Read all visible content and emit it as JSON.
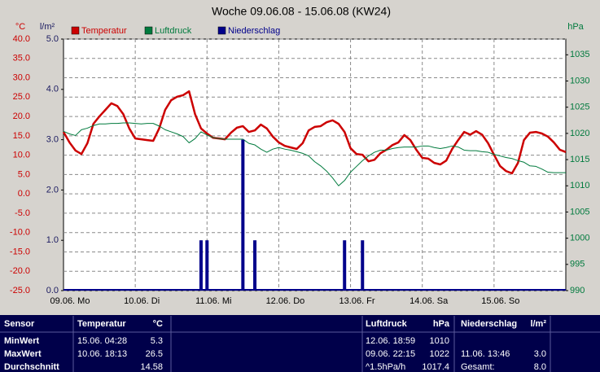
{
  "chart_data": {
    "type": "line",
    "title": "Woche 09.06.08 - 15.06.08 (KW24)",
    "y_label": "°C",
    "y2_label": "l/m²",
    "y3_label": "hPa",
    "grid": true,
    "legend": "top",
    "categories": [
      "09.06. Mo",
      null,
      null,
      null,
      null,
      null,
      null,
      null,
      null,
      null,
      null,
      null,
      "10.06. Di",
      null,
      null,
      null,
      null,
      null,
      null,
      null,
      null,
      null,
      null,
      null,
      "11.06. Mi",
      null,
      null,
      null,
      null,
      null,
      null,
      null,
      null,
      null,
      null,
      null,
      "12.06. Do",
      null,
      null,
      null,
      null,
      null,
      null,
      null,
      null,
      null,
      null,
      null,
      "13.06. Fr",
      null,
      null,
      null,
      null,
      null,
      null,
      null,
      null,
      null,
      null,
      null,
      "14.06. Sa",
      null,
      null,
      null,
      null,
      null,
      null,
      null,
      null,
      null,
      null,
      null,
      "15.06. So",
      null,
      null,
      null,
      null,
      null,
      null,
      null,
      null,
      null,
      null,
      null,
      null
    ],
    "ylim": [
      -25,
      40
    ],
    "yticks": [
      {
        "value": -25,
        "label": "-25.0"
      },
      {
        "value": -20,
        "label": "-20.0"
      },
      {
        "value": -15,
        "label": "-15.0"
      },
      {
        "value": -10,
        "label": "-10.0"
      },
      {
        "value": -5,
        "label": "-5.0"
      },
      {
        "value": 0,
        "label": "0.0"
      },
      {
        "value": 5,
        "label": "5.0"
      },
      {
        "value": 10,
        "label": "10.0"
      },
      {
        "value": 15,
        "label": "15.0"
      },
      {
        "value": 20,
        "label": "20.0"
      },
      {
        "value": 25,
        "label": "25.0"
      },
      {
        "value": 30,
        "label": "30.0"
      },
      {
        "value": 35,
        "label": "35.0"
      },
      {
        "value": 40,
        "label": "40.0"
      }
    ],
    "y2lim": [
      0,
      5
    ],
    "y2ticks": [
      {
        "value": 0,
        "label": "0.0"
      },
      {
        "value": 1,
        "label": "1.0"
      },
      {
        "value": 2,
        "label": "2.0"
      },
      {
        "value": 3,
        "label": "3.0"
      },
      {
        "value": 4,
        "label": "4.0"
      },
      {
        "value": 5,
        "label": "5.0"
      }
    ],
    "y3lim": [
      990,
      1038
    ],
    "y3ticks": [
      990,
      995,
      1000,
      1005,
      1010,
      1015,
      1020,
      1025,
      1030,
      1035
    ],
    "series": [
      {
        "name": "Temperatur",
        "color": "#cc0000",
        "axis": "y",
        "type": "line",
        "values": [
          16.0,
          13.3,
          11.2,
          10.3,
          13.1,
          18.1,
          20.0,
          21.7,
          23.4,
          22.7,
          20.6,
          16.9,
          14.3,
          14.1,
          13.9,
          13.7,
          16.9,
          21.7,
          24.2,
          25.1,
          25.5,
          26.5,
          20.6,
          16.9,
          15.6,
          14.5,
          14.3,
          14.1,
          15.8,
          17.1,
          17.5,
          16.0,
          16.4,
          17.9,
          16.9,
          14.8,
          13.3,
          12.4,
          12.0,
          11.6,
          13.1,
          16.4,
          17.3,
          17.5,
          18.5,
          19.0,
          18.1,
          16.0,
          11.8,
          10.3,
          10.1,
          8.4,
          8.8,
          10.5,
          11.4,
          12.6,
          13.3,
          15.2,
          13.9,
          11.4,
          9.3,
          9.1,
          8.0,
          7.6,
          8.6,
          11.6,
          13.9,
          16.0,
          15.3,
          16.2,
          15.3,
          13.1,
          10.1,
          7.2,
          5.9,
          5.3,
          8.0,
          13.9,
          15.8,
          16.0,
          15.6,
          14.8,
          13.3,
          11.4,
          10.8
        ]
      },
      {
        "name": "Luftdruck",
        "color": "#007a3d",
        "axis": "y3",
        "type": "line",
        "values": [
          1020.4,
          1019.9,
          1019.6,
          1020.7,
          1021.0,
          1021.5,
          1021.8,
          1021.8,
          1021.9,
          1021.9,
          1022.0,
          1022.0,
          1021.9,
          1021.8,
          1021.9,
          1021.9,
          1021.4,
          1020.7,
          1020.3,
          1019.9,
          1019.4,
          1018.2,
          1019.0,
          1020.3,
          1019.7,
          1019.2,
          1019.0,
          1018.9,
          1018.9,
          1018.9,
          1018.9,
          1018.1,
          1017.8,
          1017.0,
          1016.4,
          1017.0,
          1017.3,
          1017.0,
          1016.8,
          1016.5,
          1016.2,
          1015.7,
          1014.6,
          1013.8,
          1012.8,
          1011.5,
          1010.0,
          1011.0,
          1012.6,
          1013.7,
          1014.8,
          1015.7,
          1016.4,
          1016.8,
          1016.8,
          1017.1,
          1017.3,
          1017.4,
          1017.4,
          1017.4,
          1017.6,
          1017.6,
          1017.3,
          1017.1,
          1017.3,
          1017.6,
          1017.4,
          1016.8,
          1016.7,
          1016.7,
          1016.5,
          1016.4,
          1016.0,
          1015.7,
          1015.4,
          1015.2,
          1014.8,
          1014.5,
          1013.8,
          1013.7,
          1013.2,
          1012.6,
          1012.5,
          1012.5,
          1012.5
        ]
      },
      {
        "name": "Niederschlag",
        "color": "#00008b",
        "axis": "y2",
        "type": "bar",
        "values": [
          0,
          0,
          0,
          0,
          0,
          0,
          0,
          0,
          0,
          0,
          0,
          0,
          0,
          0,
          0,
          0,
          0,
          0,
          0,
          0,
          0,
          0,
          0,
          1.0,
          1.0,
          0,
          0,
          0,
          0,
          0,
          3.0,
          0,
          1.0,
          0,
          0,
          0,
          0,
          0,
          0,
          0,
          0,
          0,
          0,
          0,
          0,
          0,
          0,
          1.0,
          0,
          0,
          1.0,
          0,
          0,
          0,
          0,
          0,
          0,
          0,
          0,
          0,
          0,
          0,
          0,
          0,
          0,
          0,
          0,
          0,
          0,
          0,
          0,
          0,
          0,
          0,
          0,
          0,
          0,
          0,
          0,
          0,
          0,
          0,
          0,
          0,
          0
        ]
      }
    ]
  },
  "table": {
    "header": [
      "Sensor",
      "Temperatur",
      "°C",
      "Luftdruck",
      "hPa",
      "Niederschlag",
      "l/m²"
    ],
    "rows": [
      [
        "MinWert",
        "15.06.  04:28",
        "5.3",
        "12.06.  18:59",
        "1010",
        null,
        null
      ],
      [
        "MaxWert",
        "10.06.  18:13",
        "26.5",
        "09.06.  22:15",
        "1022",
        "11.06.  13:46",
        "3.0"
      ],
      [
        "Durchschnitt",
        null,
        "14.58",
        "^1.5hPa/h",
        "1017.4",
        "Gesamt:",
        "8.0"
      ]
    ]
  }
}
